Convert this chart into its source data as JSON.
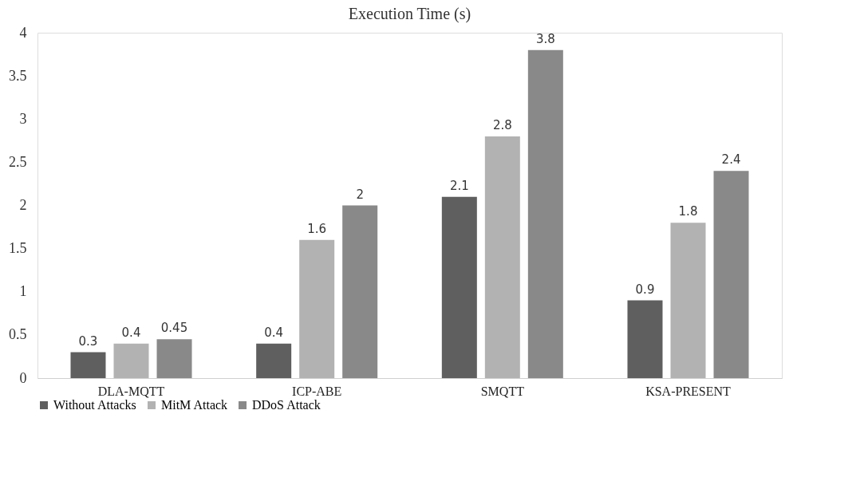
{
  "chart_data": {
    "type": "bar",
    "title": "Execution Time (s)",
    "categories": [
      "DLA-MQTT",
      "ICP-ABE",
      "SMQTT",
      "KSA-PRESENT"
    ],
    "series": [
      {
        "name": "Without Attacks",
        "color": "#5f5f5f",
        "values": [
          0.3,
          0.4,
          2.1,
          0.9
        ]
      },
      {
        "name": "MitM Attack",
        "color": "#b2b2b2",
        "values": [
          0.4,
          1.6,
          2.8,
          1.8
        ]
      },
      {
        "name": "DDoS Attack",
        "color": "#898989",
        "values": [
          0.45,
          2,
          3.8,
          2.4
        ]
      }
    ],
    "ylim": [
      0,
      4
    ],
    "yticks": [
      0,
      0.5,
      1,
      1.5,
      2,
      2.5,
      3,
      3.5,
      4
    ],
    "data_labels": true,
    "grid": false,
    "legend": "bottom"
  }
}
